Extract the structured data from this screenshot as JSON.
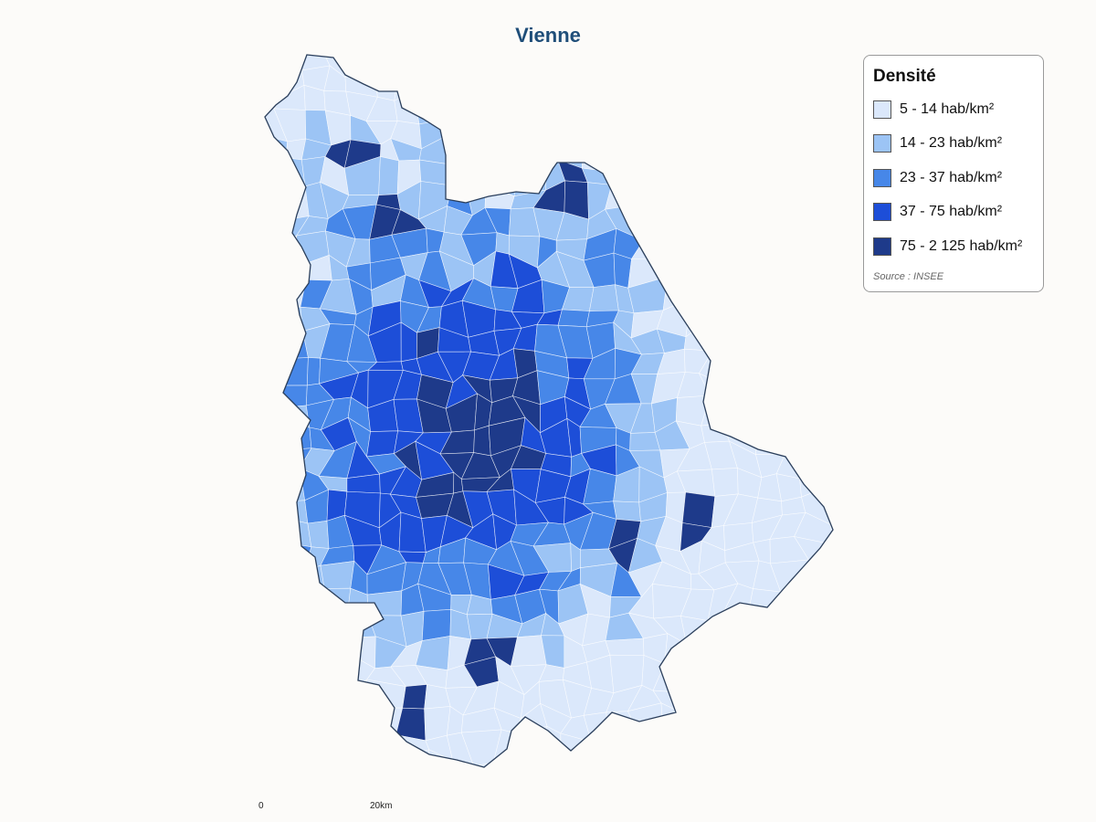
{
  "title": "Vienne",
  "legend": {
    "title": "Densité",
    "classes": [
      {
        "label": "5 - 14 hab/km²",
        "color": "#dbe8fb"
      },
      {
        "label": "14 - 23 hab/km²",
        "color": "#9cc4f5"
      },
      {
        "label": "23 - 37 hab/km²",
        "color": "#4787e8"
      },
      {
        "label": "37 - 75 hab/km²",
        "color": "#1d4ed8"
      },
      {
        "label": "75 - 2 125 hab/km²",
        "color": "#1e3a8a"
      }
    ],
    "source": "Source : INSEE"
  },
  "scale": {
    "start_label": "0",
    "end_label": "20km"
  },
  "colors": {
    "border": "#2b3f5c",
    "inner_line": "#ffffff",
    "background": "#fcfbf9"
  }
}
